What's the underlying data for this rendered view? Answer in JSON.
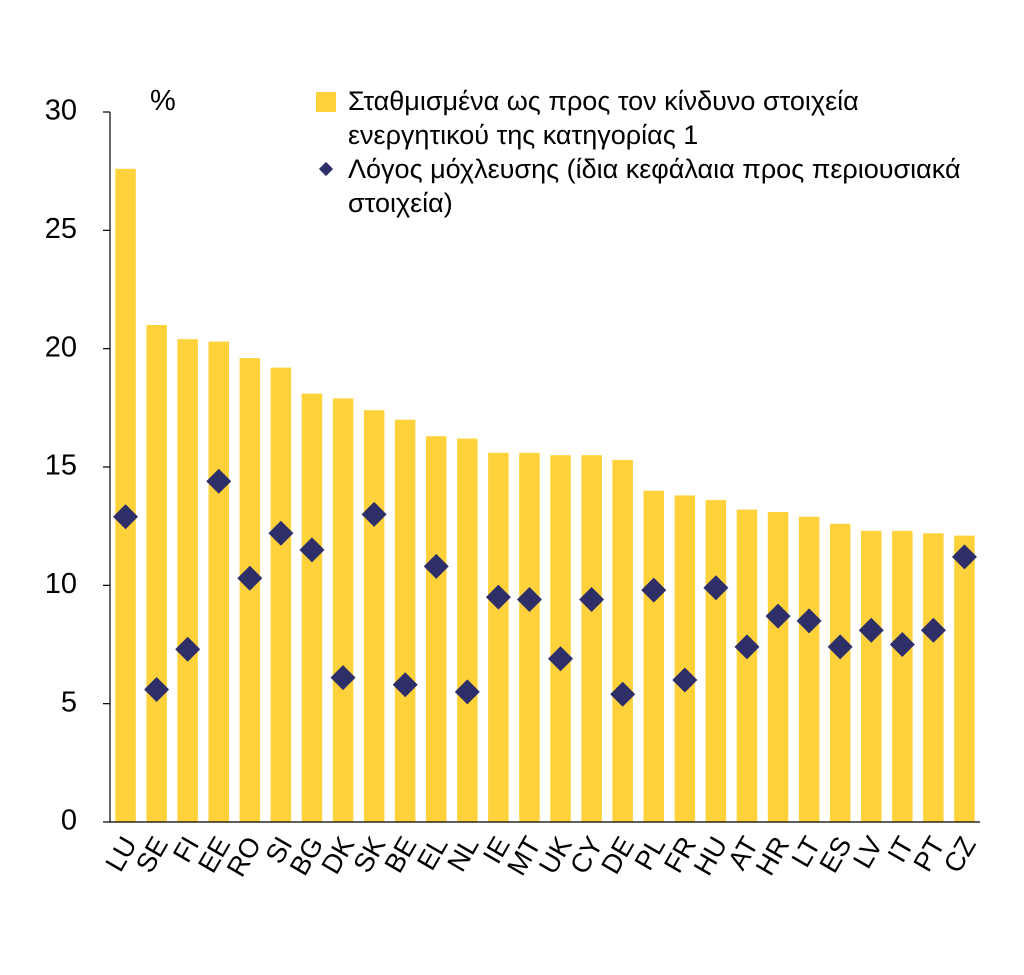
{
  "chart_data": {
    "type": "bar",
    "unit_label": "%",
    "categories": [
      "LU",
      "SE",
      "FI",
      "EE",
      "RO",
      "SI",
      "BG",
      "DK",
      "SK",
      "BE",
      "EL",
      "NL",
      "IE",
      "MT",
      "UK",
      "CY",
      "DE",
      "PL",
      "FR",
      "HU",
      "AT",
      "HR",
      "LT",
      "ES",
      "LV",
      "IT",
      "PT",
      "CZ"
    ],
    "series": [
      {
        "name": "Σταθμισμένα ως προς τον κίνδυνο στοιχεία ενεργητικού της κατηγορίας 1",
        "kind": "bar",
        "color": "#FFD23C",
        "values": [
          27.6,
          21.0,
          20.4,
          20.3,
          19.6,
          19.2,
          18.1,
          17.9,
          17.4,
          17.0,
          16.3,
          16.2,
          15.6,
          15.6,
          15.5,
          15.5,
          15.3,
          14.0,
          13.8,
          13.6,
          13.2,
          13.1,
          12.9,
          12.6,
          12.3,
          12.3,
          12.2,
          12.1
        ]
      },
      {
        "name": "Λόγος μόχλευσης (ίδια κεφάλαια προς περιουσιακά στοιχεία)",
        "kind": "marker",
        "color": "#2E2E68",
        "values": [
          12.9,
          5.6,
          7.3,
          14.4,
          10.3,
          12.2,
          11.5,
          6.1,
          13.0,
          5.8,
          10.8,
          5.5,
          9.5,
          9.4,
          6.9,
          9.4,
          5.4,
          9.8,
          6.0,
          9.9,
          7.4,
          8.7,
          8.5,
          7.4,
          8.1,
          7.5,
          8.1,
          11.2
        ]
      }
    ],
    "y_ticks": [
      0,
      5,
      10,
      15,
      20,
      25,
      30
    ],
    "ylim": [
      0,
      30
    ],
    "grid": false,
    "legend_position": "top-right"
  }
}
